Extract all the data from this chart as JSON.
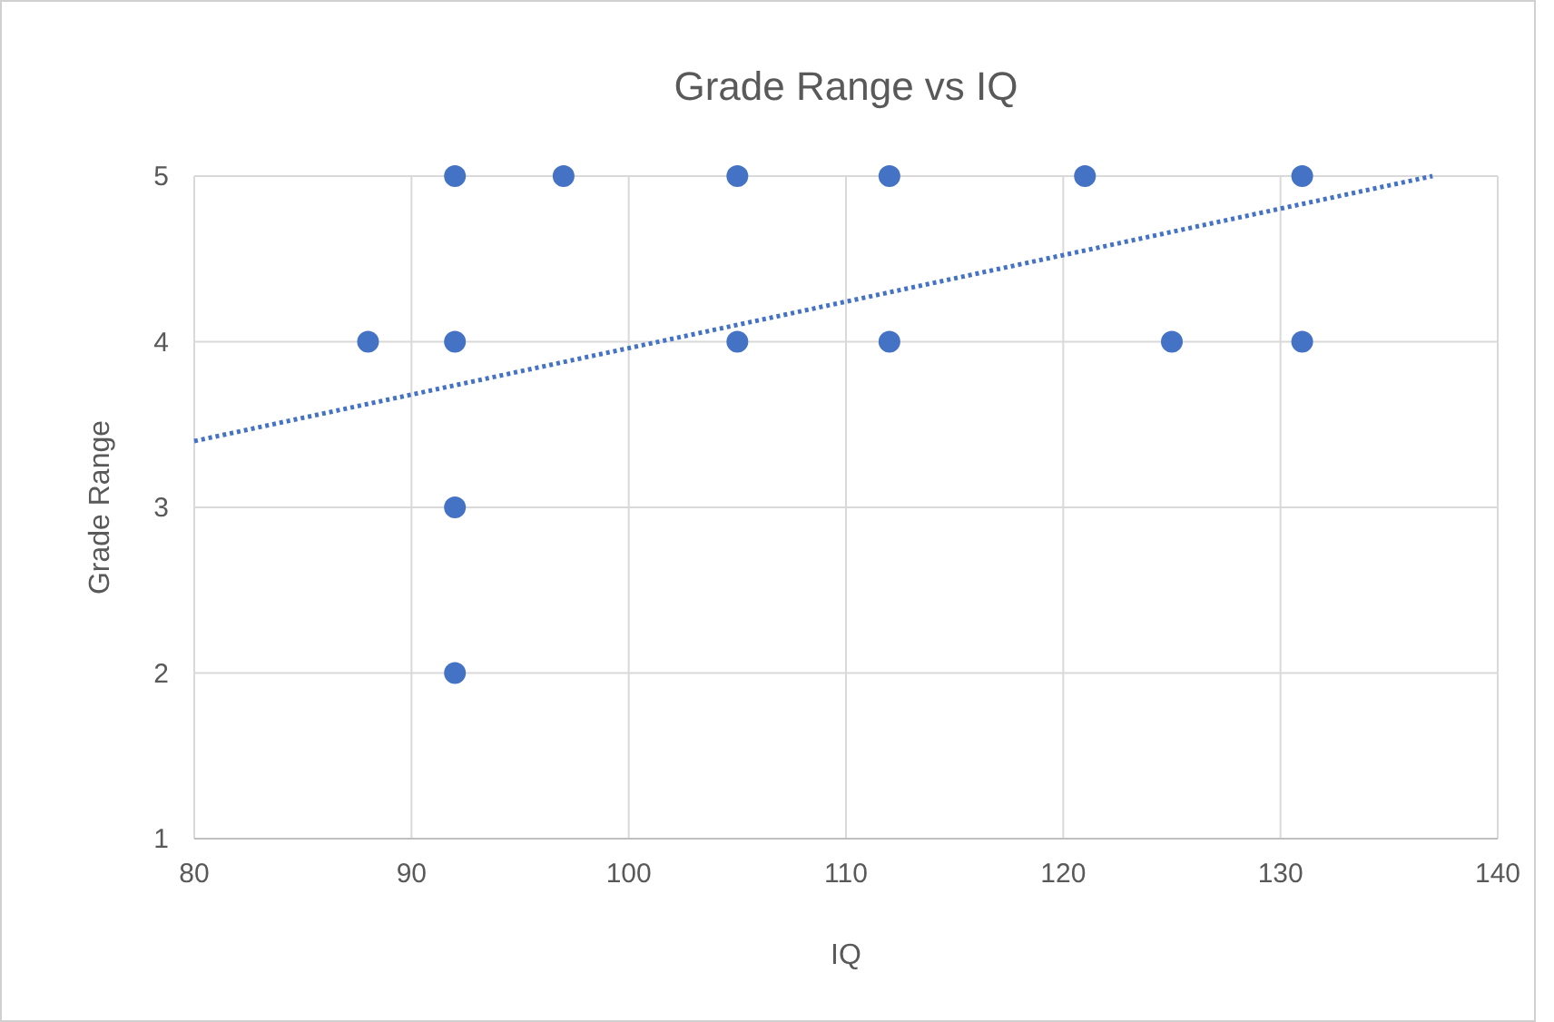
{
  "chart_data": {
    "type": "scatter",
    "title": "Grade Range vs IQ",
    "xlabel": "IQ",
    "ylabel": "Grade Range",
    "xlim": [
      80,
      140
    ],
    "xticks": [
      80,
      90,
      100,
      110,
      120,
      130,
      140
    ],
    "ylim": [
      1,
      5
    ],
    "yticks": [
      1,
      2,
      3,
      4,
      5
    ],
    "grid": true,
    "marker": "circle",
    "series": [
      {
        "color": "#4472c4",
        "x": [
          92,
          97,
          105,
          112,
          121,
          131,
          88,
          92,
          105,
          112,
          125,
          131,
          92,
          92
        ],
        "values": [
          5,
          5,
          5,
          5,
          5,
          5,
          4,
          4,
          4,
          4,
          4,
          4,
          3,
          2
        ]
      },
      {
        "type": "line",
        "color": "#4472c4",
        "line_style": "dotted",
        "marker": "none",
        "x": [
          80,
          137
        ],
        "values": [
          3.4,
          5
        ]
      }
    ]
  }
}
